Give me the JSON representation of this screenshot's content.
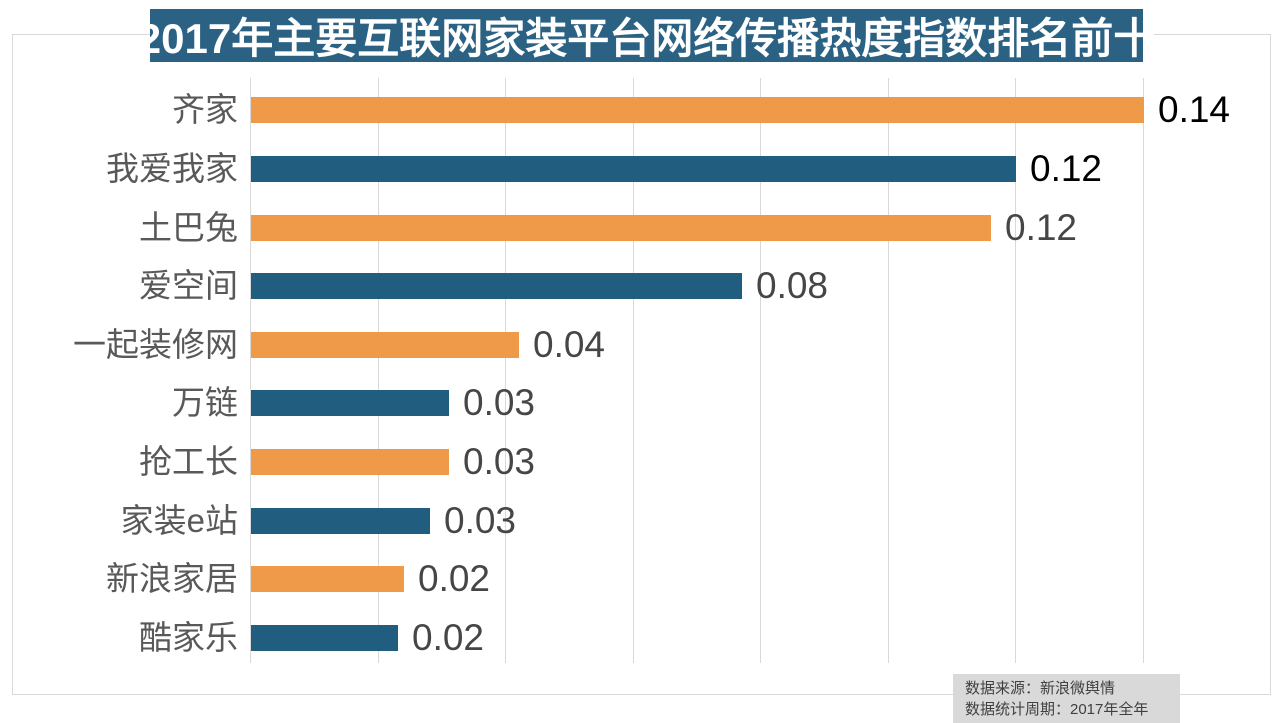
{
  "title": {
    "text": "2017年主要互联网家装平台网络传播热度指数排名前十"
  },
  "source": {
    "line1": "数据来源：新浪微舆情",
    "line2": "数据统计周期：2017年全年"
  },
  "colors": {
    "title_bg": "#2b6284",
    "title_text": "#ffffff",
    "bar_orange": "#ee9a49",
    "bar_blue": "#215d7e",
    "grid_line": "#d9d9d9",
    "frame_border": "#d9d9d9",
    "category_text": "#595959",
    "value_text_black": "#000000",
    "value_text_gray": "#464646",
    "source_bg": "#d9d9d9",
    "source_text": "#404040"
  },
  "chart_data": {
    "type": "bar",
    "orientation": "horizontal",
    "title": "2017年主要互联网家装平台网络传播热度指数排名前十",
    "xlabel": "",
    "ylabel": "",
    "xlim": [
      0,
      0.16
    ],
    "grid_step": 0.02,
    "grid": true,
    "legend": false,
    "axis_tick_labels_visible": false,
    "categories": [
      "齐家",
      "我爱我家",
      "土巴兔",
      "爱空间",
      "一起装修网",
      "万链",
      "抢工长",
      "家装e站",
      "新浪家居",
      "酷家乐"
    ],
    "values": [
      0.14,
      0.12,
      0.12,
      0.08,
      0.04,
      0.03,
      0.03,
      0.03,
      0.02,
      0.02
    ],
    "value_labels": [
      "0.14",
      "0.12",
      "0.12",
      "0.08",
      "0.04",
      "0.03",
      "0.03",
      "0.03",
      "0.02",
      "0.02"
    ],
    "bar_lengths_precise": [
      0.14,
      0.12,
      0.116,
      0.077,
      0.042,
      0.031,
      0.031,
      0.028,
      0.024,
      0.023
    ],
    "bar_colors": [
      "orange",
      "blue",
      "orange",
      "blue",
      "orange",
      "blue",
      "orange",
      "blue",
      "orange",
      "blue"
    ],
    "value_label_styles": [
      "black",
      "black",
      "gray",
      "gray",
      "gray",
      "gray",
      "gray",
      "gray",
      "gray",
      "gray"
    ]
  }
}
